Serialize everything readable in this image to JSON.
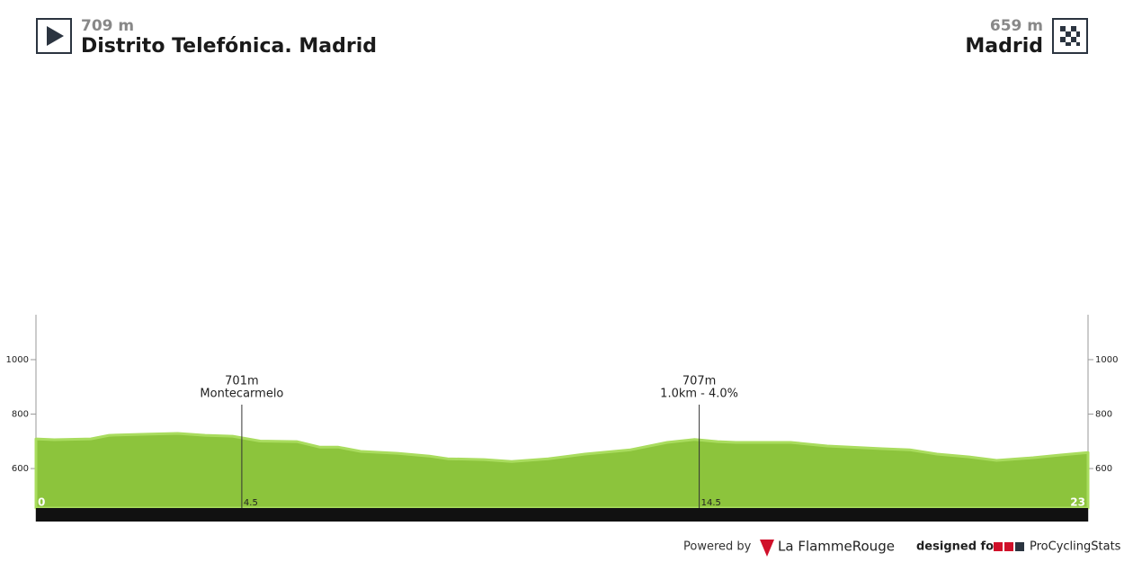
{
  "header": {
    "start": {
      "elevation": "709 m",
      "name": "Distrito Telefónica. Madrid"
    },
    "finish": {
      "elevation": "659 m",
      "name": "Madrid"
    }
  },
  "chart_data": {
    "type": "area",
    "x": [
      0,
      0.4,
      1.2,
      1.6,
      2.4,
      3.1,
      3.7,
      4.3,
      4.9,
      5.7,
      6.2,
      6.6,
      7.1,
      7.9,
      8.6,
      9.0,
      9.8,
      10.4,
      11.2,
      12.0,
      13.0,
      13.8,
      14.4,
      14.9,
      15.3,
      16.5,
      17.3,
      18.5,
      19.1,
      19.7,
      20.4,
      21.0,
      21.8,
      22.4,
      23
    ],
    "values": [
      709,
      706,
      709,
      722,
      726,
      729,
      722,
      719,
      701,
      699,
      679,
      679,
      663,
      656,
      646,
      636,
      633,
      626,
      636,
      653,
      669,
      696,
      707,
      699,
      696,
      696,
      683,
      673,
      669,
      653,
      643,
      630,
      640,
      650,
      659
    ],
    "color": "#8cc43c",
    "xlim": [
      0,
      23
    ],
    "ylim": [
      455,
      1165
    ],
    "yticks": [
      600,
      800,
      1000
    ],
    "xticks": [
      0,
      4.5,
      14.5,
      23
    ],
    "markers": [
      {
        "x": 4.5,
        "elevation": 701,
        "elevation_label": "701m",
        "name": "Montecarmelo"
      },
      {
        "x": 14.5,
        "elevation": 707,
        "elevation_label": "707m",
        "name": "1.0km - 4.0%"
      }
    ]
  },
  "footer": {
    "powered_by": "Powered by",
    "brand": "La FlammeRouge",
    "designed_for": "designed for",
    "site": "ProCyclingStats"
  }
}
